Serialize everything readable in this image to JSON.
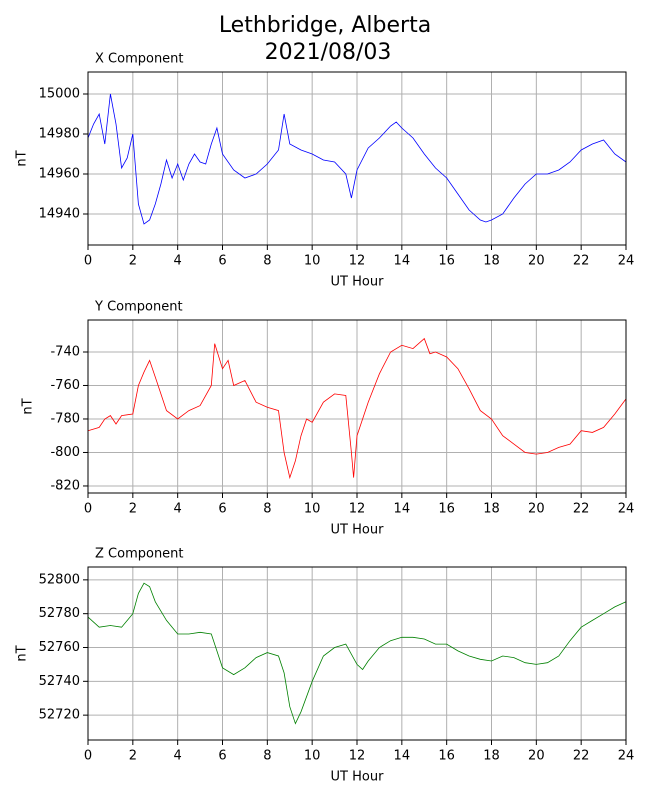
{
  "title": "Lethbridge, Alberta",
  "subtitle": "2021/08/03",
  "chart_data": [
    {
      "type": "line",
      "title": "X Component",
      "xlabel": "UT Hour",
      "ylabel": "nT",
      "color": "#0000ff",
      "grid": true,
      "xlim": [
        0,
        24
      ],
      "xticks": [
        0,
        2,
        4,
        6,
        8,
        10,
        12,
        14,
        16,
        18,
        20,
        22,
        24
      ],
      "ylim": [
        14924.5,
        15011
      ],
      "yticks": [
        14940,
        14960,
        14980,
        15000
      ],
      "x": [
        0,
        0.25,
        0.5,
        0.75,
        1,
        1.25,
        1.5,
        1.75,
        2,
        2.25,
        2.5,
        2.75,
        3,
        3.25,
        3.5,
        3.75,
        4,
        4.25,
        4.5,
        4.75,
        5,
        5.25,
        5.5,
        5.75,
        6,
        6.5,
        7,
        7.5,
        8,
        8.5,
        8.75,
        9,
        9.5,
        10,
        10.5,
        11,
        11.5,
        11.75,
        12,
        12.5,
        13,
        13.5,
        13.75,
        14,
        14.5,
        15,
        15.5,
        16,
        16.5,
        17,
        17.5,
        17.75,
        18,
        18.5,
        19,
        19.5,
        20,
        20.5,
        21,
        21.5,
        22,
        22.5,
        23,
        23.5,
        24
      ],
      "values": [
        14978,
        14985,
        14990,
        14975,
        15000,
        14985,
        14963,
        14968,
        14980,
        14945,
        14935,
        14937,
        14945,
        14955,
        14967,
        14958,
        14965,
        14957,
        14965,
        14970,
        14966,
        14965,
        14975,
        14983,
        14970,
        14962,
        14958,
        14960,
        14965,
        14972,
        14990,
        14975,
        14972,
        14970,
        14967,
        14966,
        14960,
        14948,
        14962,
        14973,
        14978,
        14984,
        14986,
        14983,
        14978,
        14970,
        14963,
        14958,
        14950,
        14942,
        14937,
        14936,
        14937,
        14940,
        14948,
        14955,
        14960,
        14960,
        14962,
        14966,
        14972,
        14975,
        14977,
        14970,
        14966
      ]
    },
    {
      "type": "line",
      "title": "Y Component",
      "xlabel": "UT Hour",
      "ylabel": "nT",
      "color": "#ff0000",
      "grid": true,
      "xlim": [
        0,
        24
      ],
      "xticks": [
        0,
        2,
        4,
        6,
        8,
        10,
        12,
        14,
        16,
        18,
        20,
        22,
        24
      ],
      "ylim": [
        -824.2,
        -720.9
      ],
      "yticks": [
        -820,
        -800,
        -780,
        -760,
        -740
      ],
      "x": [
        0,
        0.5,
        0.75,
        1,
        1.25,
        1.5,
        2,
        2.25,
        2.5,
        2.75,
        3,
        3.5,
        4,
        4.5,
        5,
        5.5,
        5.65,
        6,
        6.25,
        6.5,
        7,
        7.5,
        8,
        8.5,
        8.75,
        9,
        9.25,
        9.5,
        9.75,
        10,
        10.5,
        11,
        11.5,
        11.75,
        11.85,
        12,
        12.5,
        13,
        13.5,
        14,
        14.5,
        15,
        15.25,
        15.5,
        16,
        16.5,
        17,
        17.5,
        18,
        18.5,
        19,
        19.5,
        20,
        20.5,
        21,
        21.5,
        22,
        22.5,
        23,
        23.5,
        24
      ],
      "values": [
        -787,
        -785,
        -780,
        -778,
        -783,
        -778,
        -777,
        -760,
        -752,
        -745,
        -755,
        -775,
        -780,
        -775,
        -772,
        -760,
        -735,
        -750,
        -745,
        -760,
        -757,
        -770,
        -773,
        -775,
        -800,
        -815,
        -805,
        -790,
        -780,
        -782,
        -770,
        -765,
        -766,
        -800,
        -815,
        -790,
        -770,
        -753,
        -740,
        -736,
        -738,
        -732,
        -741,
        -740,
        -743,
        -750,
        -762,
        -775,
        -780,
        -790,
        -795,
        -800,
        -801,
        -800,
        -797,
        -795,
        -787,
        -788,
        -785,
        -777,
        -768
      ]
    },
    {
      "type": "line",
      "title": "Z Component",
      "xlabel": "UT Hour",
      "ylabel": "nT",
      "color": "#008000",
      "grid": true,
      "xlim": [
        0,
        24
      ],
      "xticks": [
        0,
        2,
        4,
        6,
        8,
        10,
        12,
        14,
        16,
        18,
        20,
        22,
        24
      ],
      "ylim": [
        52705.3,
        52807.6
      ],
      "yticks": [
        52720,
        52740,
        52760,
        52780,
        52800
      ],
      "x": [
        0,
        0.5,
        1,
        1.5,
        2,
        2.25,
        2.5,
        2.75,
        3,
        3.5,
        4,
        4.5,
        5,
        5.5,
        5.75,
        6,
        6.5,
        7,
        7.5,
        8,
        8.5,
        8.75,
        9,
        9.25,
        9.5,
        10,
        10.5,
        11,
        11.5,
        12,
        12.25,
        12.5,
        13,
        13.5,
        14,
        14.5,
        15,
        15.5,
        16,
        16.5,
        17,
        17.5,
        18,
        18.5,
        19,
        19.5,
        20,
        20.5,
        21,
        21.5,
        22,
        22.5,
        23,
        23.5,
        24
      ],
      "values": [
        52778,
        52772,
        52773,
        52772,
        52780,
        52792,
        52798,
        52796,
        52787,
        52776,
        52768,
        52768,
        52769,
        52768,
        52758,
        52748,
        52744,
        52748,
        52754,
        52757,
        52755,
        52745,
        52725,
        52715,
        52722,
        52740,
        52755,
        52760,
        52762,
        52750,
        52747,
        52752,
        52760,
        52764,
        52766,
        52766,
        52765,
        52762,
        52762,
        52758,
        52755,
        52753,
        52752,
        52755,
        52754,
        52751,
        52750,
        52751,
        52755,
        52764,
        52772,
        52776,
        52780,
        52784,
        52787
      ]
    }
  ]
}
